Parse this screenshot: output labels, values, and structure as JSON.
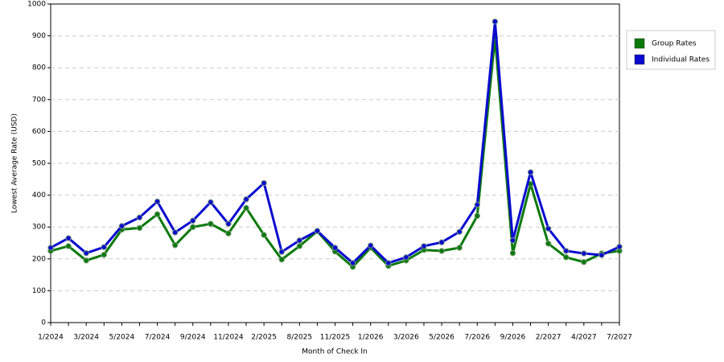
{
  "chart_data": {
    "type": "line",
    "x_label": "Month of Check In",
    "y_label": "Lowest Average Rate (USD)",
    "categories": [
      "1/2024",
      null,
      "3/2024",
      null,
      "5/2024",
      null,
      "7/2024",
      null,
      "9/2024",
      null,
      "11/2024",
      null,
      "2/2025",
      null,
      "8/2025",
      null,
      "11/2025",
      null,
      "1/2026",
      null,
      "3/2026",
      null,
      "5/2026",
      null,
      "7/2026",
      null,
      "9/2026",
      null,
      "2/2027",
      null,
      "4/2027",
      null,
      "7/2027"
    ],
    "series": [
      {
        "name": "Group Rates",
        "color": "#0a7a0a",
        "values": [
          225,
          240,
          195,
          213,
          292,
          297,
          340,
          243,
          300,
          310,
          280,
          360,
          275,
          198,
          240,
          287,
          223,
          175,
          235,
          178,
          195,
          228,
          225,
          235,
          335,
          895,
          218,
          435,
          248,
          205,
          190,
          217,
          225
        ]
      },
      {
        "name": "Individual Rates",
        "color": "#0a0ad0",
        "values": [
          235,
          265,
          218,
          237,
          303,
          330,
          380,
          283,
          320,
          378,
          310,
          387,
          438,
          222,
          258,
          288,
          235,
          187,
          242,
          187,
          205,
          240,
          252,
          285,
          370,
          945,
          258,
          472,
          295,
          225,
          217,
          212,
          238
        ]
      }
    ],
    "ylim": [
      0,
      1000
    ],
    "yticks": [
      0,
      100,
      200,
      300,
      400,
      500,
      600,
      700,
      800,
      900,
      1000
    ],
    "grid": true,
    "legend": "right"
  }
}
